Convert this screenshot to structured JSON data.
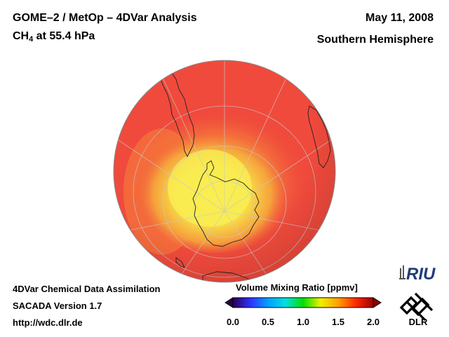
{
  "header": {
    "title": "GOME–2 / MetOp – 4DVar Analysis",
    "species_main": "CH",
    "species_sub": "4",
    "species_rest": " at 55.4 hPa",
    "date": "May 11, 2008",
    "region": "Southern Hemisphere"
  },
  "footer": {
    "line1": "4DVar Chemical Data Assimilation",
    "line2": "SACADA Version 1.7",
    "line3": "http://wdc.dlr.de"
  },
  "colorbar": {
    "title": "Volume Mixing Ratio [ppmv]",
    "ticks": [
      "0.0",
      "0.5",
      "1.0",
      "1.5",
      "2.0"
    ],
    "tick_values": [
      0.0,
      0.5,
      1.0,
      1.5,
      2.0
    ],
    "range": [
      0.0,
      2.0
    ],
    "stops": [
      "#2a0050",
      "#3030ff",
      "#00a0ff",
      "#00e0e0",
      "#00e000",
      "#f0f000",
      "#ffa000",
      "#ff2a00",
      "#a00000"
    ]
  },
  "logos": {
    "riu": "RIU",
    "dlr": "DLR"
  },
  "colors": {
    "background_field": "#f04a3c",
    "high_field": "#f8e84a",
    "mid_field": "#f7923a"
  }
}
